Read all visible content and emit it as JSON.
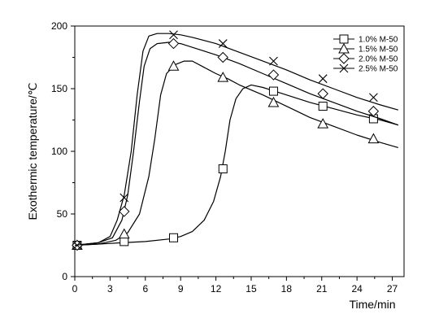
{
  "chart_data": {
    "type": "line",
    "xlabel": "Time/min",
    "ylabel": "Exothermic temperature/℃",
    "xlim": [
      0,
      28
    ],
    "ylim": [
      0,
      200
    ],
    "xticks": [
      0,
      3,
      6,
      9,
      12,
      15,
      18,
      21,
      24,
      27
    ],
    "yticks": [
      0,
      50,
      100,
      150,
      200
    ],
    "grid": false,
    "legend_position": "top-right",
    "series": [
      {
        "name": "1.0% M-50",
        "marker": "square",
        "curve": [
          [
            0,
            25
          ],
          [
            2,
            26
          ],
          [
            4,
            27
          ],
          [
            6,
            28
          ],
          [
            8,
            30
          ],
          [
            9,
            32
          ],
          [
            10,
            36
          ],
          [
            11,
            45
          ],
          [
            11.8,
            60
          ],
          [
            12.4,
            80
          ],
          [
            12.8,
            100
          ],
          [
            13.2,
            125
          ],
          [
            13.7,
            142
          ],
          [
            14.3,
            150
          ],
          [
            15,
            153
          ],
          [
            16,
            151
          ],
          [
            17,
            148
          ],
          [
            18,
            145
          ],
          [
            20,
            139
          ],
          [
            22,
            134
          ],
          [
            24,
            129
          ],
          [
            26,
            125
          ],
          [
            27.5,
            121
          ]
        ],
        "markers": [
          [
            0.2,
            25
          ],
          [
            4.2,
            28
          ],
          [
            8.4,
            31
          ],
          [
            12.6,
            86
          ],
          [
            16.9,
            148
          ],
          [
            21.1,
            136
          ],
          [
            25.4,
            126
          ]
        ]
      },
      {
        "name": "1.5% M-50",
        "marker": "triangle",
        "curve": [
          [
            0,
            25
          ],
          [
            2,
            26
          ],
          [
            3.5,
            29
          ],
          [
            4.5,
            35
          ],
          [
            5.5,
            50
          ],
          [
            6.3,
            80
          ],
          [
            6.8,
            110
          ],
          [
            7.3,
            145
          ],
          [
            7.8,
            162
          ],
          [
            8.5,
            169
          ],
          [
            9.3,
            172
          ],
          [
            10,
            172
          ],
          [
            11,
            167
          ],
          [
            12,
            162
          ],
          [
            13,
            158
          ],
          [
            14,
            153
          ],
          [
            16,
            145
          ],
          [
            18,
            136
          ],
          [
            20,
            127
          ],
          [
            22,
            120
          ],
          [
            24,
            113
          ],
          [
            26,
            107
          ],
          [
            27.5,
            103
          ]
        ],
        "markers": [
          [
            0.2,
            25
          ],
          [
            4.2,
            34
          ],
          [
            8.4,
            168
          ],
          [
            12.6,
            159
          ],
          [
            16.9,
            139
          ],
          [
            21.1,
            122
          ],
          [
            25.4,
            110
          ]
        ]
      },
      {
        "name": "2.0% M-50",
        "marker": "diamond",
        "curve": [
          [
            0,
            25
          ],
          [
            2,
            27
          ],
          [
            3.2,
            31
          ],
          [
            4,
            45
          ],
          [
            4.5,
            65
          ],
          [
            5,
            100
          ],
          [
            5.5,
            140
          ],
          [
            5.9,
            168
          ],
          [
            6.4,
            182
          ],
          [
            7,
            186
          ],
          [
            8,
            187
          ],
          [
            9,
            186
          ],
          [
            10,
            183
          ],
          [
            12,
            177
          ],
          [
            14,
            170
          ],
          [
            16,
            162
          ],
          [
            18,
            154
          ],
          [
            20,
            146
          ],
          [
            22,
            139
          ],
          [
            24,
            132
          ],
          [
            26,
            126
          ],
          [
            27.5,
            121
          ]
        ],
        "markers": [
          [
            0.2,
            25
          ],
          [
            4.2,
            52
          ],
          [
            8.4,
            186
          ],
          [
            12.6,
            175
          ],
          [
            16.9,
            161
          ],
          [
            21.1,
            146
          ],
          [
            25.4,
            132
          ]
        ]
      },
      {
        "name": "2.5% M-50",
        "marker": "x",
        "curve": [
          [
            0,
            25
          ],
          [
            2,
            27
          ],
          [
            3,
            32
          ],
          [
            3.6,
            45
          ],
          [
            4.2,
            65
          ],
          [
            4.8,
            100
          ],
          [
            5.3,
            145
          ],
          [
            5.8,
            180
          ],
          [
            6.3,
            192
          ],
          [
            7,
            194
          ],
          [
            8,
            194
          ],
          [
            9,
            193
          ],
          [
            10,
            191
          ],
          [
            12,
            186
          ],
          [
            14,
            179
          ],
          [
            16,
            172
          ],
          [
            18,
            165
          ],
          [
            20,
            157
          ],
          [
            22,
            150
          ],
          [
            24,
            143
          ],
          [
            26,
            137
          ],
          [
            27.5,
            133
          ]
        ],
        "markers": [
          [
            0.2,
            25
          ],
          [
            4.2,
            63
          ],
          [
            8.4,
            193
          ],
          [
            12.6,
            186
          ],
          [
            16.9,
            172
          ],
          [
            21.1,
            158
          ],
          [
            25.4,
            143
          ]
        ]
      }
    ]
  }
}
